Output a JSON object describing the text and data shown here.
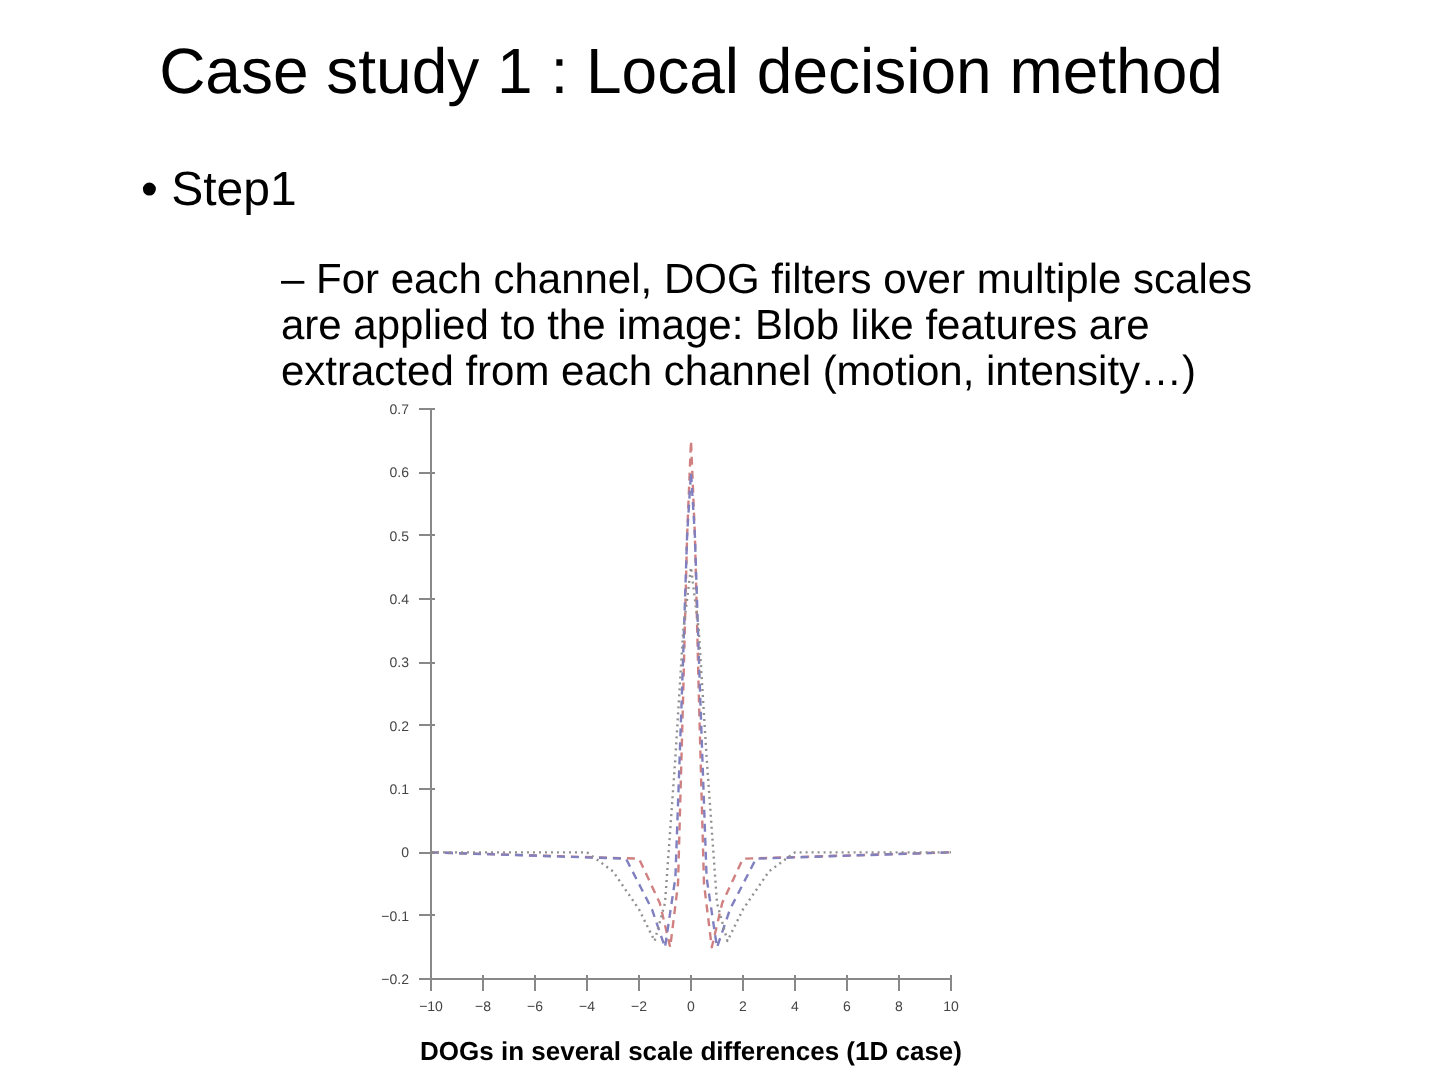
{
  "chart_data": {
    "type": "line",
    "title": "Case study 1 : Local decision method",
    "annotations": [
      "• Step1",
      "– For each channel, DOG filters over multiple scales are applied to the image: Blob like features are extracted from each channel (motion, intensity…)",
      "DOGs in several scale differences (1D case)"
    ],
    "xlim": [
      -10,
      10
    ],
    "xticks": [
      -10,
      -8,
      -6,
      -4,
      -2,
      0,
      2,
      4,
      6,
      8,
      10
    ],
    "ylim": [
      -0.2,
      0.7
    ],
    "yticks": [
      -0.2,
      -0.1,
      0,
      0.1,
      0.2,
      0.3,
      0.4,
      0.5,
      0.6,
      0.7
    ],
    "grid": false,
    "series": [
      {
        "color": "#d08080",
        "line_style": "dashed",
        "x": [
          -10,
          -2,
          -1.2,
          -0.8,
          -0.5,
          -0.3,
          -0.15,
          0,
          0.15,
          0.3,
          0.5,
          0.8,
          1.2,
          2,
          10
        ],
        "values": [
          0,
          -0.01,
          -0.08,
          -0.15,
          -0.05,
          0.25,
          0.5,
          0.65,
          0.5,
          0.25,
          -0.05,
          -0.15,
          -0.08,
          -0.01,
          0
        ]
      },
      {
        "color": "#8080c0",
        "line_style": "dashed",
        "x": [
          -10,
          -2.5,
          -1.5,
          -1,
          -0.6,
          -0.35,
          -0.15,
          0,
          0.15,
          0.35,
          0.6,
          1,
          1.5,
          2.5,
          10
        ],
        "values": [
          0,
          -0.01,
          -0.09,
          -0.15,
          -0.04,
          0.25,
          0.5,
          0.6,
          0.5,
          0.25,
          -0.04,
          -0.15,
          -0.09,
          -0.01,
          0
        ]
      },
      {
        "color": "#909090",
        "line_style": "dotted",
        "x": [
          -10,
          -4,
          -3,
          -2,
          -1.4,
          -1,
          -0.6,
          -0.3,
          0,
          0.3,
          0.6,
          1,
          1.4,
          2,
          3,
          4,
          10
        ],
        "values": [
          0,
          0,
          -0.03,
          -0.09,
          -0.14,
          -0.08,
          0.15,
          0.35,
          0.45,
          0.35,
          0.15,
          -0.08,
          -0.14,
          -0.09,
          -0.03,
          0,
          0
        ]
      }
    ]
  }
}
